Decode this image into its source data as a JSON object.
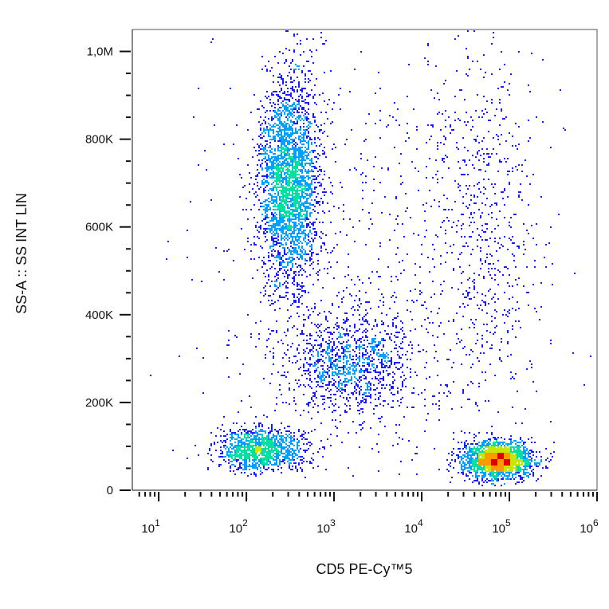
{
  "chart_data": {
    "type": "scatter",
    "subtype": "flow-cytometry-density-dot-plot",
    "xlabel": "CD5  PE-Cy™5",
    "ylabel": "SS-A :: SS INT LIN",
    "x_scale": "log",
    "y_scale": "linear",
    "xlim": [
      5,
      1000000
    ],
    "ylim": [
      0,
      1050000
    ],
    "x_ticks": [
      {
        "value": 10,
        "base": "10",
        "exp": "1"
      },
      {
        "value": 100,
        "base": "10",
        "exp": "2"
      },
      {
        "value": 1000,
        "base": "10",
        "exp": "3"
      },
      {
        "value": 10000,
        "base": "10",
        "exp": "4"
      },
      {
        "value": 100000,
        "base": "10",
        "exp": "5"
      },
      {
        "value": 1000000,
        "base": "10",
        "exp": "6"
      }
    ],
    "y_ticks": [
      {
        "value": 0,
        "label": "0"
      },
      {
        "value": 200000,
        "label": "200K"
      },
      {
        "value": 400000,
        "label": "400K"
      },
      {
        "value": 600000,
        "label": "600K"
      },
      {
        "value": 800000,
        "label": "800K"
      },
      {
        "value": 1000000,
        "label": "1,0M"
      }
    ],
    "grid": false,
    "legend": "none",
    "color_scale": [
      "#1a1aff",
      "#00a0ff",
      "#00e0a0",
      "#c8e600",
      "#ff9900",
      "#e00000"
    ],
    "populations": [
      {
        "x_center": 300,
        "y_center": 700000,
        "x_spread_decades": 0.17,
        "y_spread": 120000,
        "weight": 0.34
      },
      {
        "x_center": 1500,
        "y_center": 290000,
        "x_spread_decades": 0.35,
        "y_spread": 55000,
        "weight": 0.12
      },
      {
        "x_center": 150,
        "y_center": 95000,
        "x_spread_decades": 0.25,
        "y_spread": 25000,
        "weight": 0.14
      },
      {
        "x_center": 70000,
        "y_center": 70000,
        "x_spread_decades": 0.2,
        "y_spread": 20000,
        "weight": 0.24
      },
      {
        "x_center": 2000,
        "y_center": 500000,
        "x_spread_decades": 0.9,
        "y_spread": 300000,
        "weight": 0.08
      },
      {
        "x_center": 50000,
        "y_center": 600000,
        "x_spread_decades": 0.35,
        "y_spread": 250000,
        "weight": 0.08
      }
    ]
  }
}
